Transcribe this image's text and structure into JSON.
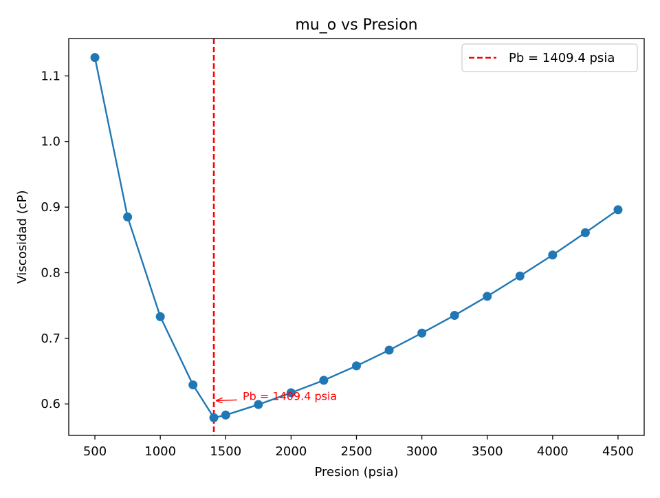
{
  "chart_data": {
    "type": "line",
    "title": "mu_o vs Presion",
    "xlabel": "Presion (psia)",
    "ylabel": "Viscosidad (cP)",
    "xlim": [
      300,
      4700
    ],
    "ylim": [
      0.552,
      1.157
    ],
    "xticks": [
      500,
      1000,
      1500,
      2000,
      2500,
      3000,
      3500,
      4000,
      4500
    ],
    "yticks": [
      0.6,
      0.7,
      0.8,
      0.9,
      1.0,
      1.1
    ],
    "xtick_labels": [
      "500",
      "1000",
      "1500",
      "2000",
      "2500",
      "3000",
      "3500",
      "4000",
      "4500"
    ],
    "ytick_labels": [
      "0.6",
      "0.7",
      "0.8",
      "0.9",
      "1.0",
      "1.1"
    ],
    "grid": false,
    "legend_position": "top-right",
    "series": [
      {
        "color": "#1f77b4",
        "marker": "circle",
        "x": [
          500,
          750,
          1000,
          1250,
          1409.4,
          1500,
          1750,
          2000,
          2250,
          2500,
          2750,
          3000,
          3250,
          3500,
          3750,
          4000,
          4250,
          4500
        ],
        "y": [
          1.128,
          0.885,
          0.733,
          0.629,
          0.579,
          0.583,
          0.599,
          0.617,
          0.636,
          0.658,
          0.682,
          0.708,
          0.735,
          0.764,
          0.795,
          0.827,
          0.861,
          0.896
        ]
      }
    ],
    "reference_line": {
      "orientation": "vertical",
      "x": 1409.4,
      "color": "#ff0000",
      "style": "dashed",
      "legend_label": "Pb = 1409.4 psia"
    },
    "annotation": {
      "text": "Pb = 1409.4 psia",
      "color": "#ff0000",
      "xy": [
        1409.4,
        0.605
      ],
      "xytext": [
        1630,
        0.605
      ]
    }
  }
}
